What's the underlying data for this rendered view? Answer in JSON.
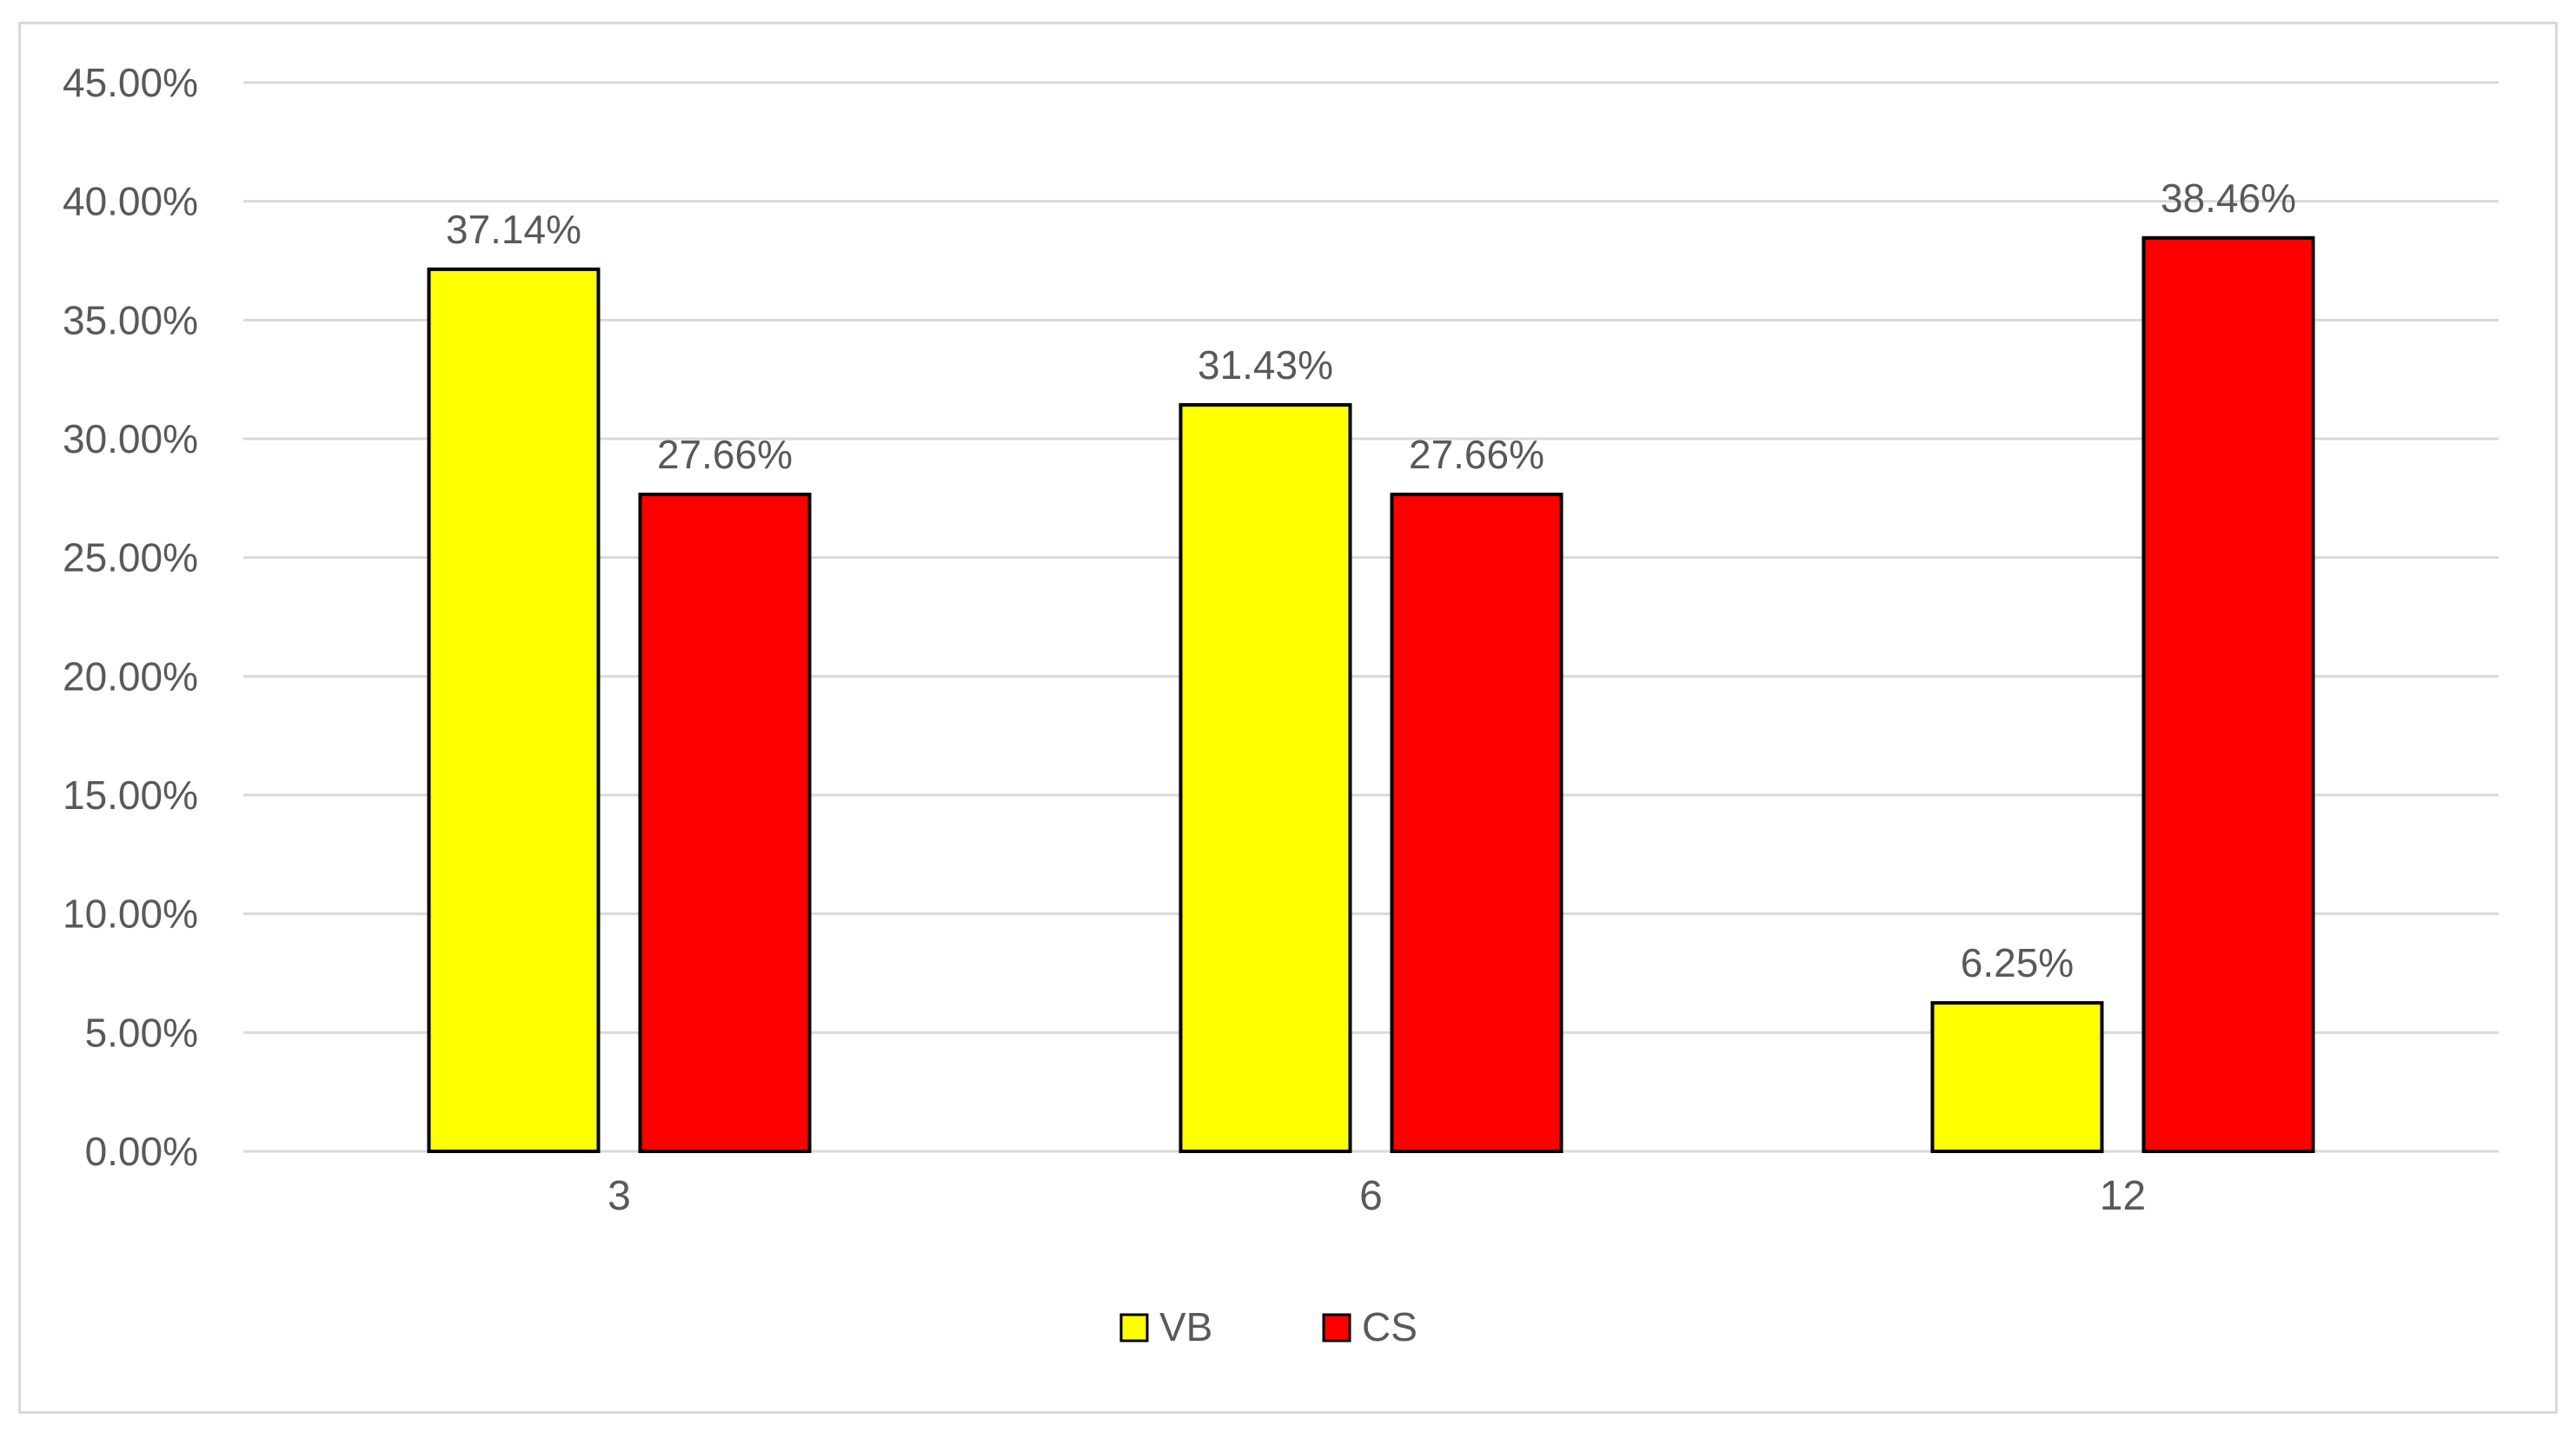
{
  "chart_data": {
    "type": "bar",
    "categories": [
      "3",
      "6",
      "12"
    ],
    "series": [
      {
        "name": "VB",
        "color": "#ffff00",
        "values": [
          37.14,
          31.43,
          6.25
        ],
        "labels": [
          "37.14%",
          "31.43%",
          "6.25%"
        ]
      },
      {
        "name": "CS",
        "color": "#ff0000",
        "values": [
          27.66,
          27.66,
          38.46
        ],
        "labels": [
          "27.66%",
          "27.66%",
          "38.46%"
        ]
      }
    ],
    "ylim": [
      0,
      45
    ],
    "y_ticks": [
      0,
      5,
      10,
      15,
      20,
      25,
      30,
      35,
      40,
      45
    ],
    "y_tick_labels": [
      "0.00%",
      "5.00%",
      "10.00%",
      "15.00%",
      "20.00%",
      "25.00%",
      "30.00%",
      "35.00%",
      "40.00%",
      "45.00%"
    ],
    "title": "",
    "xlabel": "",
    "ylabel": "",
    "grid": true,
    "legend_position": "bottom-center",
    "colors": {
      "gridline": "#d9d9d9",
      "text": "#595959",
      "bar_outline": "#000000",
      "frame": "#d9d9d9"
    }
  }
}
